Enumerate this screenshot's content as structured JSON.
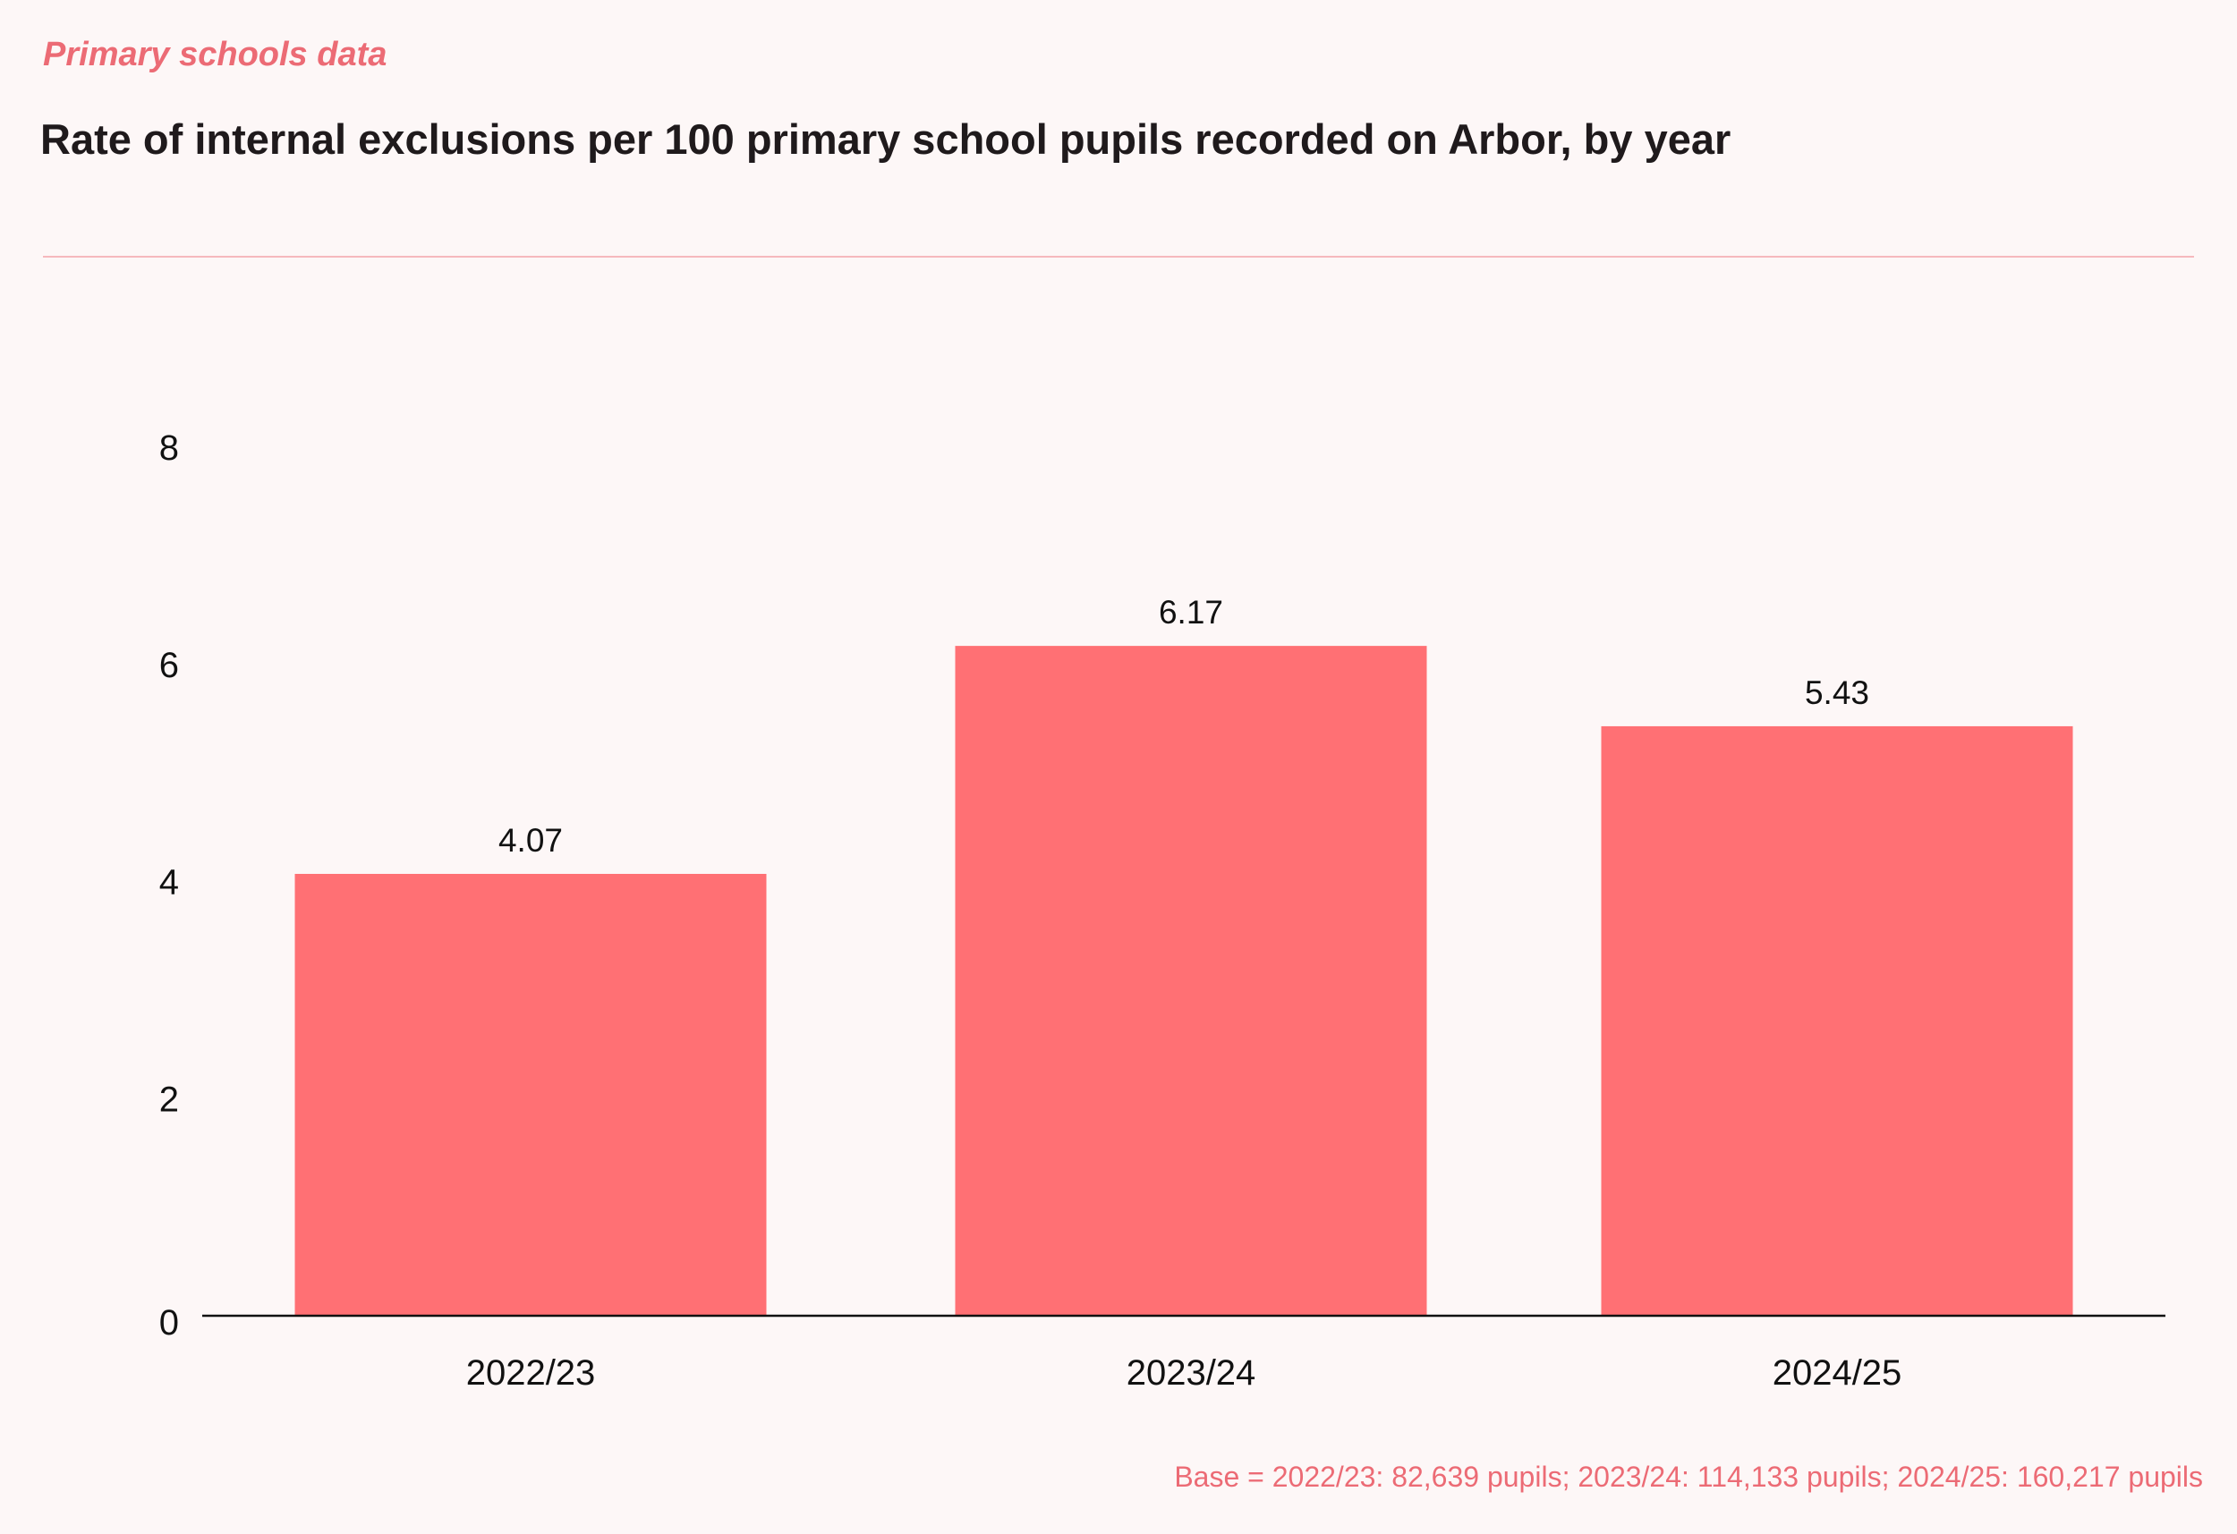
{
  "header": {
    "eyebrow": "Primary schools data",
    "title": "Rate of internal exclusions per 100 primary school pupils recorded on Arbor, by year"
  },
  "footnote": "Base = 2022/23: 82,639 pupils; 2023/24: 114,133 pupils; 2024/25: 160,217 pupils",
  "colors": {
    "accent": "#ec6b75",
    "bar": "#ff7074",
    "background": "#fdf7f7"
  },
  "chart_data": {
    "type": "bar",
    "title": "Rate of internal exclusions per 100 primary school pupils recorded on Arbor, by year",
    "categories": [
      "2022/23",
      "2023/24",
      "2024/25"
    ],
    "values": [
      4.07,
      6.17,
      5.43
    ],
    "value_labels": [
      "4.07",
      "6.17",
      "5.43"
    ],
    "xlabel": "",
    "ylabel": "",
    "ylim": [
      0,
      8
    ],
    "yticks": [
      0,
      2,
      4,
      6,
      8
    ],
    "ytick_labels": [
      "0",
      "2",
      "4",
      "6",
      "8"
    ],
    "grid": false,
    "legend": "none"
  }
}
